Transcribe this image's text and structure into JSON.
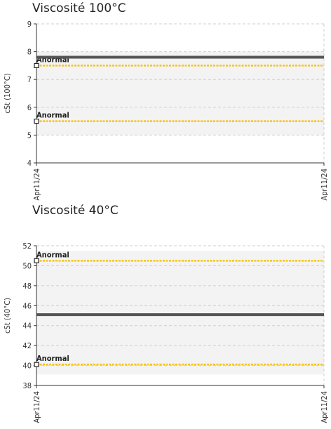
{
  "chart_data": [
    {
      "type": "line",
      "title": "Viscosité 100°C",
      "ylabel": "cSt (100°C)",
      "xlabel": "",
      "ylim": [
        4,
        9
      ],
      "yticks": [
        4,
        5,
        6,
        7,
        8,
        9
      ],
      "x_tick_labels": [
        "Apr11/24",
        "Apr11/24"
      ],
      "grid": true,
      "series": [
        {
          "values": [
            7.8,
            7.8
          ],
          "color": "#555555"
        }
      ],
      "thresholds": [
        {
          "label": "Anormal",
          "value": 7.5,
          "color": "#f5c518"
        },
        {
          "label": "Anormal",
          "value": 5.5,
          "color": "#f5c518"
        }
      ],
      "bands": [
        [
          5.5,
          7.5
        ],
        [
          7.5,
          8.0
        ],
        [
          5.0,
          5.5
        ]
      ]
    },
    {
      "type": "line",
      "title": "Viscosité 40°C",
      "ylabel": "cSt (40°C)",
      "xlabel": "",
      "ylim": [
        38,
        52
      ],
      "yticks": [
        38,
        40,
        42,
        44,
        46,
        48,
        50,
        52
      ],
      "x_tick_labels": [
        "Apr11/24",
        "Apr11/24"
      ],
      "grid": true,
      "series": [
        {
          "values": [
            45.1,
            45.1
          ],
          "color": "#555555"
        }
      ],
      "thresholds": [
        {
          "label": "Anormal",
          "value": 50.5,
          "color": "#f5c518"
        },
        {
          "label": "Anormal",
          "value": 40.1,
          "color": "#f5c518"
        }
      ],
      "bands": [
        [
          40.1,
          50.5
        ],
        [
          44.1,
          46.1
        ],
        [
          50.5,
          51.5
        ],
        [
          39.1,
          40.1
        ]
      ]
    }
  ]
}
